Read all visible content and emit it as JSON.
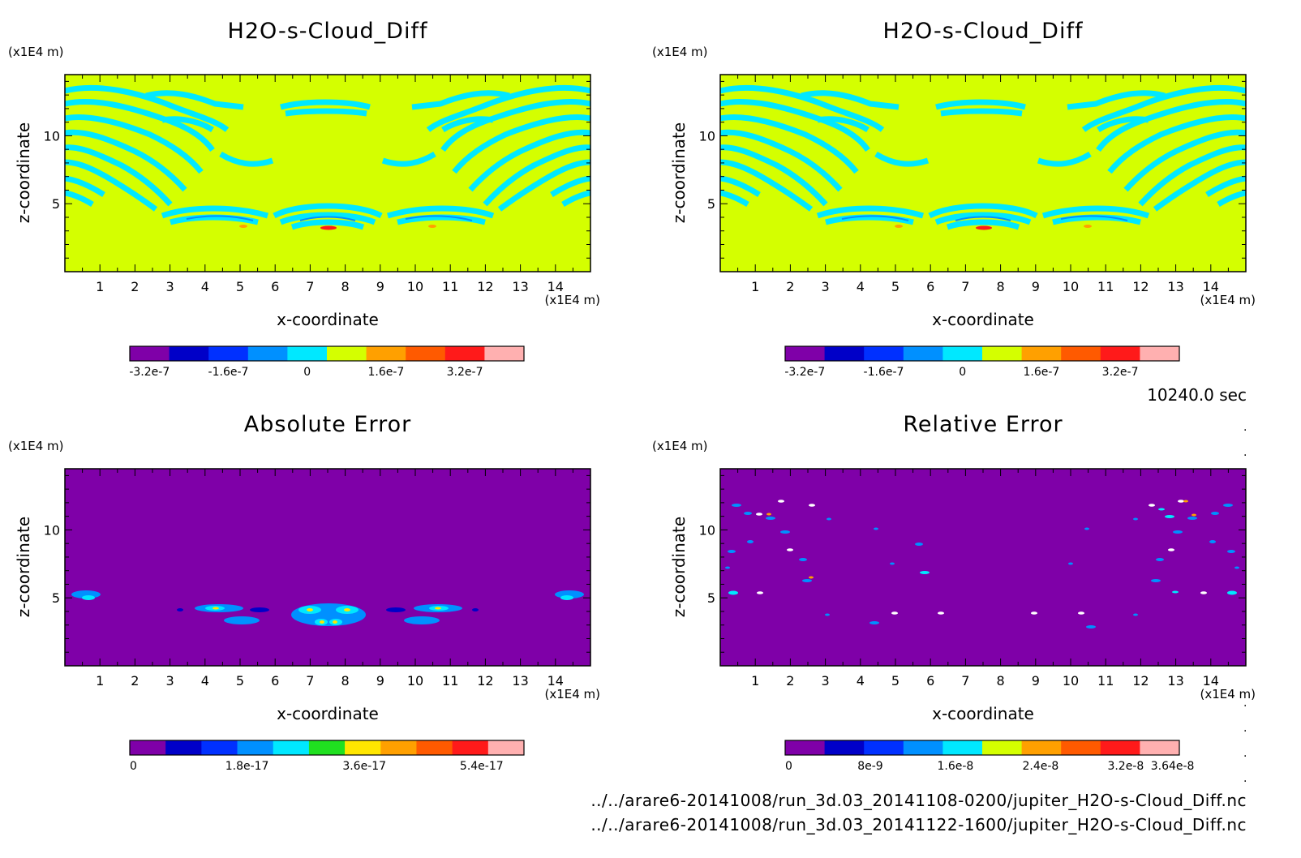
{
  "time_label": "10240.0 sec",
  "file_paths": [
    "../../arare6-20141008/run_3d.03_20141108-0200/jupiter_H2O-s-Cloud_Diff.nc",
    "../../arare6-20141008/run_3d.03_20141122-1600/jupiter_H2O-s-Cloud_Diff.nc"
  ],
  "chart_data": [
    {
      "type": "heatmap",
      "title": "H2O-s-Cloud_Diff",
      "xlabel": "x-coordinate",
      "ylabel": "z-coordinate",
      "x_unit": "(x1E4 m)",
      "y_unit": "(x1E4 m)",
      "xlim": [
        0,
        15
      ],
      "ylim": [
        0,
        14.5
      ],
      "x_ticks": [
        "1",
        "2",
        "3",
        "4",
        "5",
        "6",
        "7",
        "8",
        "9",
        "10",
        "11",
        "12",
        "13",
        "14"
      ],
      "y_ticks": [
        "5",
        "10"
      ],
      "background_color": "#d4ff00",
      "colorbar": {
        "colors": [
          "#7f00a8",
          "#0000c8",
          "#0030ff",
          "#0090ff",
          "#00e8ff",
          "#d4ff00",
          "#ffa000",
          "#ff5a00",
          "#ff1a1a",
          "#ffb0b0"
        ],
        "labels": [
          "-3.2e-7",
          "-1.6e-7",
          "0",
          "1.6e-7",
          "3.2e-7"
        ]
      }
    },
    {
      "type": "heatmap",
      "title": "H2O-s-Cloud_Diff",
      "xlabel": "x-coordinate",
      "ylabel": "z-coordinate",
      "x_unit": "(x1E4 m)",
      "y_unit": "(x1E4 m)",
      "xlim": [
        0,
        15
      ],
      "ylim": [
        0,
        14.5
      ],
      "x_ticks": [
        "1",
        "2",
        "3",
        "4",
        "5",
        "6",
        "7",
        "8",
        "9",
        "10",
        "11",
        "12",
        "13",
        "14"
      ],
      "y_ticks": [
        "5",
        "10"
      ],
      "background_color": "#d4ff00",
      "colorbar": {
        "colors": [
          "#7f00a8",
          "#0000c8",
          "#0030ff",
          "#0090ff",
          "#00e8ff",
          "#d4ff00",
          "#ffa000",
          "#ff5a00",
          "#ff1a1a",
          "#ffb0b0"
        ],
        "labels": [
          "-3.2e-7",
          "-1.6e-7",
          "0",
          "1.6e-7",
          "3.2e-7"
        ]
      }
    },
    {
      "type": "heatmap",
      "title": "Absolute Error",
      "xlabel": "x-coordinate",
      "ylabel": "z-coordinate",
      "x_unit": "(x1E4 m)",
      "y_unit": "(x1E4 m)",
      "xlim": [
        0,
        15
      ],
      "ylim": [
        0,
        14.5
      ],
      "x_ticks": [
        "1",
        "2",
        "3",
        "4",
        "5",
        "6",
        "7",
        "8",
        "9",
        "10",
        "11",
        "12",
        "13",
        "14"
      ],
      "y_ticks": [
        "5",
        "10"
      ],
      "background_color": "#7f00a8",
      "colorbar": {
        "colors": [
          "#7f00a8",
          "#0000c8",
          "#0030ff",
          "#0090ff",
          "#00e8ff",
          "#20e020",
          "#ffe600",
          "#ffa000",
          "#ff5a00",
          "#ff1a1a",
          "#ffb0b0"
        ],
        "labels": [
          "0",
          "1.8e-17",
          "3.6e-17",
          "5.4e-17"
        ]
      }
    },
    {
      "type": "heatmap",
      "title": "Relative Error",
      "xlabel": "x-coordinate",
      "ylabel": "z-coordinate",
      "x_unit": "(x1E4 m)",
      "y_unit": "(x1E4 m)",
      "xlim": [
        0,
        15
      ],
      "ylim": [
        0,
        14.5
      ],
      "x_ticks": [
        "1",
        "2",
        "3",
        "4",
        "5",
        "6",
        "7",
        "8",
        "9",
        "10",
        "11",
        "12",
        "13",
        "14"
      ],
      "y_ticks": [
        "5",
        "10"
      ],
      "background_color": "#7f00a8",
      "colorbar": {
        "colors": [
          "#7f00a8",
          "#0000c8",
          "#0030ff",
          "#0090ff",
          "#00e8ff",
          "#d4ff00",
          "#ffa000",
          "#ff5a00",
          "#ff1a1a",
          "#ffb0b0"
        ],
        "labels": [
          "0",
          "8e-9",
          "1.6e-8",
          "2.4e-8",
          "3.2e-8",
          "3.64e-8"
        ]
      }
    }
  ]
}
